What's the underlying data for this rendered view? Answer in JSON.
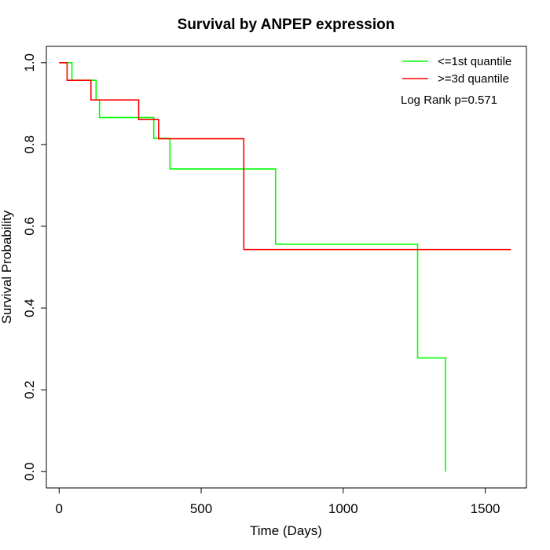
{
  "chart_data": {
    "type": "line",
    "subtype": "kaplan-meier-step",
    "title": "Survival by ANPEP expression",
    "xlabel": "Time (Days)",
    "ylabel": "Survival Probability",
    "xlim": [
      -45,
      1645
    ],
    "ylim": [
      -0.04,
      1.04
    ],
    "xticks": [
      0,
      500,
      1000,
      1500
    ],
    "xtick_labels": [
      "0",
      "500",
      "1000",
      "1500"
    ],
    "yticks": [
      0.0,
      0.2,
      0.4,
      0.6,
      0.8,
      1.0
    ],
    "ytick_labels": [
      "0.0",
      "0.2",
      "0.4",
      "0.6",
      "0.8",
      "1.0"
    ],
    "grid": false,
    "legend_position": "top-right",
    "annotation": "Log Rank p=0.571",
    "series": [
      {
        "name": "<=1st quantile",
        "color": "#00ff00",
        "points": [
          [
            0,
            1.0
          ],
          [
            45,
            1.0
          ],
          [
            45,
            0.957
          ],
          [
            130,
            0.957
          ],
          [
            130,
            0.909
          ],
          [
            142,
            0.909
          ],
          [
            142,
            0.866
          ],
          [
            333,
            0.866
          ],
          [
            333,
            0.815
          ],
          [
            390,
            0.815
          ],
          [
            390,
            0.74
          ],
          [
            762,
            0.74
          ],
          [
            762,
            0.556
          ],
          [
            1262,
            0.556
          ],
          [
            1262,
            0.278
          ],
          [
            1360,
            0.278
          ],
          [
            1360,
            0.0
          ]
        ]
      },
      {
        "name": ">=3d quantile",
        "color": "#ff0000",
        "points": [
          [
            0,
            1.0
          ],
          [
            28,
            1.0
          ],
          [
            28,
            0.957
          ],
          [
            112,
            0.957
          ],
          [
            112,
            0.909
          ],
          [
            280,
            0.909
          ],
          [
            280,
            0.861
          ],
          [
            350,
            0.861
          ],
          [
            350,
            0.814
          ],
          [
            650,
            0.814
          ],
          [
            650,
            0.543
          ],
          [
            1590,
            0.543
          ]
        ]
      }
    ]
  }
}
